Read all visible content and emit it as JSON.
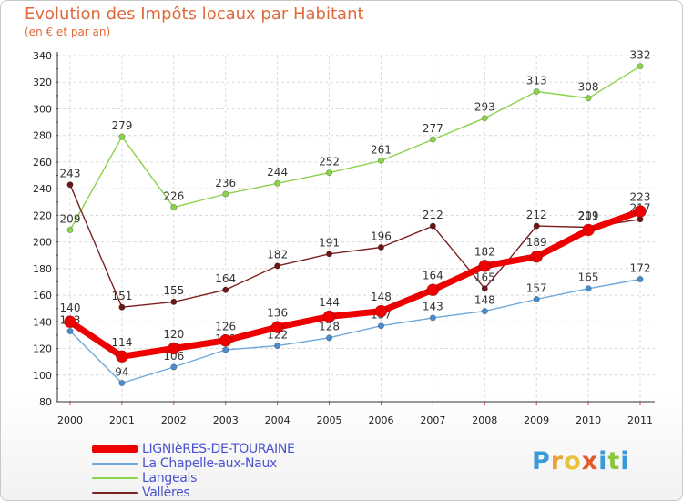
{
  "title": "Evolution des Impôts locaux par Habitant",
  "subtitle": "(en € et par an)",
  "brand": {
    "letters": [
      "P",
      "r",
      "o",
      "x",
      "i",
      "t",
      "i"
    ],
    "colors": [
      "#3a9ad9",
      "#e8a33a",
      "#e8c33a",
      "#e05a2a",
      "#3a9ad9",
      "#8cc63f",
      "#3a9ad9"
    ]
  },
  "chart_data": {
    "type": "line",
    "title": "Evolution des Impôts locaux par Habitant",
    "subtitle": "(en € et par an)",
    "xlabel": "",
    "ylabel": "",
    "ylim": [
      80,
      340
    ],
    "yticks": [
      80,
      100,
      120,
      140,
      160,
      180,
      200,
      220,
      240,
      260,
      280,
      300,
      320,
      340
    ],
    "grid": true,
    "legend_position": "bottom-left",
    "x": [
      "2000",
      "2001",
      "2002",
      "2003",
      "2004",
      "2005",
      "2006",
      "2007",
      "2008",
      "2009",
      "2010",
      "2011"
    ],
    "series": [
      {
        "name": "Langeais",
        "color": "#8cd24a",
        "marker": "#8cd24a",
        "values": [
          209,
          279,
          226,
          236,
          244,
          252,
          261,
          277,
          293,
          313,
          308,
          332
        ],
        "labels": [
          "209",
          "279",
          "226",
          "236",
          "244",
          "252",
          "261",
          "277",
          "293",
          "313",
          "308",
          "332"
        ]
      },
      {
        "name": "Vallères",
        "color": "#7a2020",
        "marker": "#6a1818",
        "values": [
          243,
          151,
          155,
          164,
          182,
          191,
          196,
          212,
          165,
          212,
          211,
          217
        ],
        "labels": [
          "243",
          "151",
          "155",
          "164",
          "182",
          "191",
          "196",
          "212",
          "165",
          "212",
          "211",
          "217"
        ]
      },
      {
        "name": "La Chapelle-aux-Naux",
        "color": "#6fa8d8",
        "marker": "#4a8ccc",
        "values": [
          133,
          94,
          106,
          119,
          122,
          128,
          137,
          143,
          148,
          157,
          165,
          172
        ],
        "labels": [
          "133",
          "94",
          "106",
          "119",
          "122",
          "128",
          "137",
          "143",
          "148",
          "157",
          "165",
          "172"
        ]
      },
      {
        "name": "LIGNIèRES-DE-TOURAINE",
        "color": "#ee0000",
        "marker": "#ee0000",
        "values": [
          140,
          114,
          120,
          126,
          136,
          144,
          148,
          164,
          182,
          189,
          209,
          223
        ],
        "labels": [
          "140",
          "114",
          "120",
          "126",
          "136",
          "144",
          "148",
          "164",
          "182",
          "189",
          "209",
          "223"
        ]
      }
    ],
    "legend_order": [
      "LIGNIèRES-DE-TOURAINE",
      "La Chapelle-aux-Naux",
      "Langeais",
      "Vallères"
    ]
  }
}
